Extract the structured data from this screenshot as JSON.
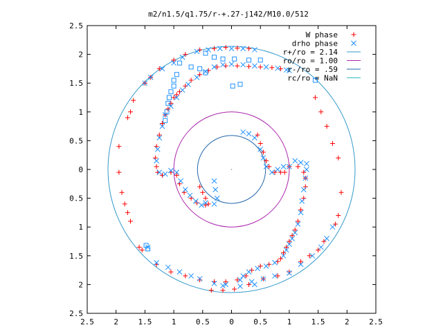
{
  "chart_data": {
    "type": "scatter",
    "title": "m2/n1.5/q1.75/r-+.27-j142/M10.0/512",
    "xlabel": "",
    "ylabel": "",
    "xlim": [
      -2.5,
      2.5
    ],
    "ylim": [
      -2.5,
      2.5
    ],
    "x_ticks": [
      -2.5,
      -2,
      -1.5,
      -1,
      -0.5,
      0,
      0.5,
      1,
      1.5,
      2,
      2.5
    ],
    "y_ticks": [
      -2.5,
      -2,
      -1.5,
      -1,
      -0.5,
      0,
      0.5,
      1,
      1.5,
      2,
      2.5
    ],
    "x_tick_labels": [
      "2.5",
      "2",
      "1.5",
      "1",
      "0.5",
      "0",
      "0.5",
      "1",
      "1.5",
      "2",
      "2.5"
    ],
    "y_tick_labels": [
      "2.5",
      "2",
      "1.5",
      "1",
      "0.5",
      "0",
      "0.5",
      "1",
      "1.5",
      "2",
      "2.5"
    ],
    "grid": false,
    "legend_position": "top-right",
    "legend": [
      {
        "label": "W phase",
        "marker": "plus",
        "color": "#ff0000"
      },
      {
        "label": "drho phase",
        "marker": "cross",
        "color": "#1e90ff"
      },
      {
        "label": "r+/ro = 2.14",
        "marker": "line",
        "color": "#3399cc"
      },
      {
        "label": "ro/ro = 1.00",
        "marker": "line",
        "color": "#aa22aa"
      },
      {
        "label": "r-/ro = .59",
        "marker": "line",
        "color": "#2266aa"
      },
      {
        "label": "rc/ro = NaN",
        "marker": "line",
        "color": "#33bbbb"
      }
    ],
    "circles": [
      {
        "name": "r+/ro = 2.14",
        "r": 2.14,
        "color": "#3399cc"
      },
      {
        "name": "ro/ro = 1.00",
        "r": 1.0,
        "color": "#aa22aa"
      },
      {
        "name": "r-/ro = .59",
        "r": 0.59,
        "color": "#2266aa"
      }
    ],
    "series": [
      {
        "name": "W phase",
        "color": "#ff0000",
        "marker": "plus",
        "points": [
          [
            -1.05,
            1.15
          ],
          [
            -1.0,
            1.25
          ],
          [
            -0.95,
            1.3
          ],
          [
            -0.9,
            1.35
          ],
          [
            -0.8,
            1.45
          ],
          [
            -0.7,
            1.55
          ],
          [
            -0.55,
            1.65
          ],
          [
            -0.4,
            1.72
          ],
          [
            -0.25,
            1.78
          ],
          [
            -0.1,
            1.8
          ],
          [
            0.1,
            1.8
          ],
          [
            0.3,
            1.79
          ],
          [
            0.5,
            1.78
          ],
          [
            0.7,
            1.77
          ],
          [
            0.85,
            1.75
          ],
          [
            -1.1,
            1.05
          ],
          [
            -1.15,
            0.95
          ],
          [
            -1.2,
            0.8
          ],
          [
            -1.25,
            0.6
          ],
          [
            -1.3,
            0.4
          ],
          [
            -1.32,
            0.2
          ],
          [
            -1.3,
            0.05
          ],
          [
            -1.28,
            -0.05
          ],
          [
            -1.2,
            -0.1
          ],
          [
            -1.05,
            -0.05
          ],
          [
            -0.95,
            -0.1
          ],
          [
            -0.9,
            -0.25
          ],
          [
            -0.82,
            -0.4
          ],
          [
            -0.7,
            -0.5
          ],
          [
            -0.6,
            -0.58
          ],
          [
            0.85,
            -1.55
          ],
          [
            0.9,
            -1.45
          ],
          [
            0.95,
            -1.35
          ],
          [
            1.0,
            -1.25
          ],
          [
            1.05,
            -1.15
          ],
          [
            1.1,
            -1.05
          ],
          [
            1.15,
            -0.9
          ],
          [
            1.2,
            -0.7
          ],
          [
            1.25,
            -0.5
          ],
          [
            1.28,
            -0.3
          ],
          [
            1.28,
            -0.15
          ],
          [
            1.25,
            -0.05
          ],
          [
            1.15,
            0.05
          ],
          [
            1.0,
            0.05
          ],
          [
            0.92,
            -0.05
          ],
          [
            0.8,
            -1.6
          ],
          [
            0.65,
            -1.65
          ],
          [
            0.5,
            -1.68
          ],
          [
            0.35,
            -1.75
          ],
          [
            0.25,
            -1.85
          ],
          [
            0.1,
            -1.92
          ],
          [
            -0.1,
            -1.95
          ],
          [
            -0.3,
            -1.95
          ],
          [
            -0.55,
            -1.92
          ],
          [
            -0.8,
            -1.85
          ],
          [
            -1.05,
            -1.78
          ],
          [
            -1.3,
            -1.65
          ],
          [
            -1.55,
            -1.4
          ],
          [
            -1.6,
            -1.35
          ],
          [
            -1.75,
            -0.9
          ],
          [
            -1.8,
            -0.75
          ],
          [
            -1.85,
            -0.6
          ],
          [
            -1.9,
            -0.4
          ],
          [
            -1.95,
            -0.05
          ],
          [
            -1.95,
            0.4
          ],
          [
            -1.8,
            0.9
          ],
          [
            -1.75,
            1.0
          ],
          [
            -1.7,
            1.2
          ],
          [
            -1.5,
            1.5
          ],
          [
            -1.4,
            1.6
          ],
          [
            -1.25,
            1.75
          ],
          [
            -1.0,
            1.9
          ],
          [
            -0.8,
            2.0
          ],
          [
            -0.55,
            2.08
          ],
          [
            -0.3,
            2.1
          ],
          [
            -0.1,
            2.12
          ],
          [
            0.1,
            2.11
          ],
          [
            0.3,
            2.1
          ],
          [
            1.45,
            1.25
          ],
          [
            1.55,
            1.0
          ],
          [
            1.65,
            0.75
          ],
          [
            1.75,
            0.45
          ],
          [
            1.85,
            0.2
          ],
          [
            1.9,
            -0.4
          ],
          [
            1.85,
            -0.8
          ],
          [
            1.8,
            -0.95
          ],
          [
            1.6,
            -1.25
          ],
          [
            1.5,
            -1.4
          ],
          [
            1.35,
            -1.5
          ],
          [
            1.2,
            -1.6
          ],
          [
            1.0,
            -1.78
          ],
          [
            0.8,
            -1.85
          ],
          [
            0.55,
            -1.9
          ],
          [
            0.3,
            -2.0
          ],
          [
            0.05,
            -2.08
          ],
          [
            -0.15,
            -2.1
          ],
          [
            -0.35,
            -2.1
          ],
          [
            0.45,
            0.6
          ],
          [
            0.5,
            0.45
          ],
          [
            0.55,
            0.3
          ],
          [
            0.6,
            0.15
          ],
          [
            0.65,
            0.05
          ],
          [
            0.75,
            -0.05
          ],
          [
            0.85,
            -0.05
          ],
          [
            -0.55,
            -0.3
          ],
          [
            -0.5,
            -0.4
          ],
          [
            -0.45,
            -0.5
          ],
          [
            -0.4,
            -0.6
          ],
          [
            -0.45,
            -0.62
          ]
        ]
      },
      {
        "name": "drho phase",
        "color": "#1e90ff",
        "marker": "cross",
        "points": [
          [
            -1.05,
            1.1
          ],
          [
            -0.95,
            1.25
          ],
          [
            -0.85,
            1.38
          ],
          [
            -0.75,
            1.48
          ],
          [
            -0.6,
            1.6
          ],
          [
            -0.45,
            1.7
          ],
          [
            -0.3,
            1.78
          ],
          [
            -0.15,
            1.82
          ],
          [
            0.0,
            1.83
          ],
          [
            0.2,
            1.82
          ],
          [
            0.4,
            1.8
          ],
          [
            0.6,
            1.78
          ],
          [
            0.8,
            1.76
          ],
          [
            0.95,
            1.73
          ],
          [
            1.0,
            1.72
          ],
          [
            -1.15,
            0.95
          ],
          [
            -1.2,
            0.75
          ],
          [
            -1.25,
            0.55
          ],
          [
            -1.28,
            0.35
          ],
          [
            -1.3,
            0.15
          ],
          [
            -1.25,
            -0.05
          ],
          [
            -1.15,
            -0.08
          ],
          [
            -1.05,
            -0.02
          ],
          [
            -0.95,
            -0.05
          ],
          [
            -0.88,
            -0.2
          ],
          [
            -0.8,
            -0.35
          ],
          [
            -0.72,
            -0.45
          ],
          [
            -0.62,
            -0.55
          ],
          [
            -0.52,
            -0.62
          ],
          [
            -0.45,
            -0.58
          ],
          [
            0.9,
            -1.5
          ],
          [
            0.95,
            -1.4
          ],
          [
            1.0,
            -1.3
          ],
          [
            1.05,
            -1.2
          ],
          [
            1.1,
            -1.1
          ],
          [
            1.15,
            -0.95
          ],
          [
            1.2,
            -0.75
          ],
          [
            1.22,
            -0.55
          ],
          [
            1.25,
            -0.35
          ],
          [
            1.28,
            -0.15
          ],
          [
            1.3,
            0.0
          ],
          [
            1.3,
            0.1
          ],
          [
            1.2,
            0.12
          ],
          [
            1.1,
            0.15
          ],
          [
            1.0,
            0.05
          ],
          [
            0.75,
            -1.62
          ],
          [
            0.6,
            -1.68
          ],
          [
            0.45,
            -1.72
          ],
          [
            0.3,
            -1.78
          ],
          [
            0.2,
            -1.85
          ],
          [
            0.15,
            -1.92
          ],
          [
            0.2,
            0.65
          ],
          [
            0.3,
            0.62
          ],
          [
            0.4,
            0.55
          ],
          [
            0.5,
            0.35
          ],
          [
            0.55,
            0.2
          ],
          [
            0.6,
            0.05
          ],
          [
            0.7,
            -0.05
          ],
          [
            0.8,
            0.0
          ],
          [
            0.9,
            0.05
          ],
          [
            -0.3,
            -0.2
          ],
          [
            -0.28,
            -0.35
          ],
          [
            -0.25,
            -0.5
          ],
          [
            -0.3,
            -0.6
          ],
          [
            -1.5,
            1.5
          ],
          [
            -1.4,
            1.6
          ],
          [
            -1.2,
            1.75
          ],
          [
            -1.0,
            1.85
          ],
          [
            -0.85,
            1.95
          ],
          [
            -0.6,
            2.05
          ],
          [
            -0.4,
            2.08
          ],
          [
            -0.2,
            2.1
          ],
          [
            0.0,
            2.1
          ],
          [
            0.2,
            2.1
          ],
          [
            0.4,
            2.08
          ],
          [
            -1.45,
            -1.35
          ],
          [
            -1.3,
            -1.62
          ],
          [
            -1.1,
            -1.7
          ],
          [
            -0.9,
            -1.78
          ],
          [
            -0.7,
            -1.85
          ],
          [
            -0.55,
            -1.9
          ],
          [
            -0.3,
            -1.98
          ],
          [
            -0.1,
            -2.0
          ],
          [
            0.15,
            -2.03
          ],
          [
            0.4,
            -2.0
          ],
          [
            1.0,
            -1.8
          ],
          [
            1.2,
            -1.65
          ],
          [
            1.4,
            -1.5
          ],
          [
            1.55,
            -1.35
          ],
          [
            1.65,
            -1.2
          ],
          [
            1.75,
            -1.0
          ],
          [
            -0.15,
            -2.02
          ],
          [
            0.35,
            -1.95
          ],
          [
            0.55,
            -1.9
          ],
          [
            0.75,
            -1.85
          ]
        ]
      },
      {
        "name": "squares",
        "color": "#1e90ff",
        "marker": "square",
        "points": [
          [
            -0.45,
            2.02
          ],
          [
            -0.3,
            1.95
          ],
          [
            -0.15,
            1.92
          ],
          [
            0.05,
            1.92
          ],
          [
            0.3,
            1.9
          ],
          [
            0.5,
            1.9
          ],
          [
            -0.9,
            1.85
          ],
          [
            -0.7,
            1.78
          ],
          [
            -0.55,
            1.75
          ],
          [
            -0.45,
            1.68
          ],
          [
            -0.95,
            1.65
          ],
          [
            -1.0,
            1.55
          ],
          [
            -1.0,
            1.45
          ],
          [
            -1.05,
            1.35
          ],
          [
            -1.08,
            1.25
          ],
          [
            -1.1,
            1.15
          ],
          [
            -1.12,
            1.0
          ],
          [
            -1.15,
            0.85
          ],
          [
            -1.48,
            -1.32
          ],
          [
            -1.45,
            -1.38
          ],
          [
            0.15,
            1.48
          ],
          [
            0.02,
            1.45
          ],
          [
            1.45,
            1.55
          ]
        ]
      }
    ]
  }
}
